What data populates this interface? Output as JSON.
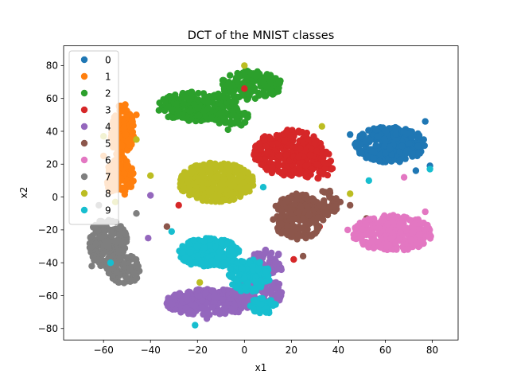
{
  "chart_data": {
    "type": "scatter",
    "title": "DCT of the MNIST classes",
    "xlabel": "x1",
    "ylabel": "x2",
    "xlim": [
      -77,
      91
    ],
    "ylim": [
      -87,
      92
    ],
    "xticks": [
      -60,
      -40,
      -20,
      0,
      20,
      40,
      60,
      80
    ],
    "yticks": [
      -80,
      -60,
      -40,
      -20,
      0,
      20,
      40,
      60,
      80
    ],
    "grid": false,
    "legend_position": "top-left",
    "series": [
      {
        "name": "0",
        "color": "#1f77b4",
        "clusters": [
          {
            "cx": 62,
            "cy": 32,
            "rx": 15,
            "ry": 11,
            "n": 320
          }
        ],
        "points": [
          [
            56,
            41
          ],
          [
            73,
            16
          ],
          [
            77,
            46
          ],
          [
            45,
            38
          ],
          [
            79,
            19
          ]
        ]
      },
      {
        "name": "1",
        "color": "#ff7f0e",
        "clusters": [
          {
            "cx": -52,
            "cy": 40,
            "rx": 5,
            "ry": 17,
            "n": 160
          },
          {
            "cx": -53,
            "cy": 12,
            "rx": 6,
            "ry": 12,
            "n": 120
          }
        ],
        "points": [
          [
            -60,
            25
          ],
          [
            -46,
            50
          ]
        ]
      },
      {
        "name": "2",
        "color": "#2ca02c",
        "clusters": [
          {
            "cx": -20,
            "cy": 55,
            "rx": 18,
            "ry": 9,
            "n": 220
          },
          {
            "cx": 3,
            "cy": 68,
            "rx": 13,
            "ry": 9,
            "n": 150
          },
          {
            "cx": -5,
            "cy": 48,
            "rx": 8,
            "ry": 5,
            "n": 40
          }
        ],
        "points": [
          [
            -7,
            41
          ],
          [
            -26,
            57
          ]
        ]
      },
      {
        "name": "3",
        "color": "#d62728",
        "clusters": [
          {
            "cx": 19,
            "cy": 27,
            "rx": 15,
            "ry": 14,
            "n": 300
          },
          {
            "cx": 30,
            "cy": 20,
            "rx": 8,
            "ry": 10,
            "n": 60
          }
        ],
        "points": [
          [
            -28,
            -5
          ],
          [
            21,
            -38
          ],
          [
            32,
            -18
          ],
          [
            0,
            66
          ]
        ]
      },
      {
        "name": "4",
        "color": "#9467bd",
        "clusters": [
          {
            "cx": -15,
            "cy": -64,
            "rx": 19,
            "ry": 8,
            "n": 260
          },
          {
            "cx": 5,
            "cy": -58,
            "rx": 12,
            "ry": 9,
            "n": 130
          },
          {
            "cx": 9,
            "cy": -40,
            "rx": 8,
            "ry": 8,
            "n": 60
          }
        ],
        "points": [
          [
            -41,
            -25
          ],
          [
            -16,
            -74
          ],
          [
            -40,
            1
          ]
        ]
      },
      {
        "name": "5",
        "color": "#8c564b",
        "clusters": [
          {
            "cx": 23,
            "cy": -12,
            "rx": 11,
            "ry": 14,
            "n": 230
          },
          {
            "cx": 36,
            "cy": -3,
            "rx": 5,
            "ry": 8,
            "n": 40
          }
        ],
        "points": [
          [
            45,
            -5
          ],
          [
            52,
            -13
          ],
          [
            25,
            -36
          ],
          [
            -33,
            -18
          ],
          [
            8,
            -65
          ]
        ]
      },
      {
        "name": "6",
        "color": "#e377c2",
        "clusters": [
          {
            "cx": 63,
            "cy": -22,
            "rx": 17,
            "ry": 11,
            "n": 330
          }
        ],
        "points": [
          [
            44,
            -20
          ],
          [
            77,
            -9
          ],
          [
            68,
            12
          ]
        ]
      },
      {
        "name": "7",
        "color": "#7f7f7f",
        "clusters": [
          {
            "cx": -58,
            "cy": -28,
            "rx": 8,
            "ry": 16,
            "n": 170
          },
          {
            "cx": -51,
            "cy": -44,
            "rx": 7,
            "ry": 9,
            "n": 70
          }
        ],
        "points": [
          [
            -65,
            -42
          ],
          [
            -46,
            -10
          ],
          [
            -62,
            -5
          ]
        ]
      },
      {
        "name": "8",
        "color": "#bcbd22",
        "clusters": [
          {
            "cx": -12,
            "cy": 9,
            "rx": 16,
            "ry": 12,
            "n": 360
          }
        ],
        "points": [
          [
            -60,
            37
          ],
          [
            -55,
            -3
          ],
          [
            0,
            80
          ],
          [
            45,
            2
          ],
          [
            33,
            43
          ],
          [
            -46,
            35
          ],
          [
            -40,
            13
          ],
          [
            -19,
            -52
          ]
        ]
      },
      {
        "name": "9",
        "color": "#17becf",
        "clusters": [
          {
            "cx": -15,
            "cy": -34,
            "rx": 13,
            "ry": 9,
            "n": 230
          },
          {
            "cx": 2,
            "cy": -48,
            "rx": 9,
            "ry": 10,
            "n": 160
          },
          {
            "cx": 8,
            "cy": -66,
            "rx": 6,
            "ry": 5,
            "n": 40
          }
        ],
        "points": [
          [
            -57,
            -40
          ],
          [
            -21,
            -78
          ],
          [
            -31,
            -21
          ],
          [
            8,
            6
          ],
          [
            53,
            10
          ],
          [
            79,
            17
          ]
        ]
      }
    ]
  }
}
